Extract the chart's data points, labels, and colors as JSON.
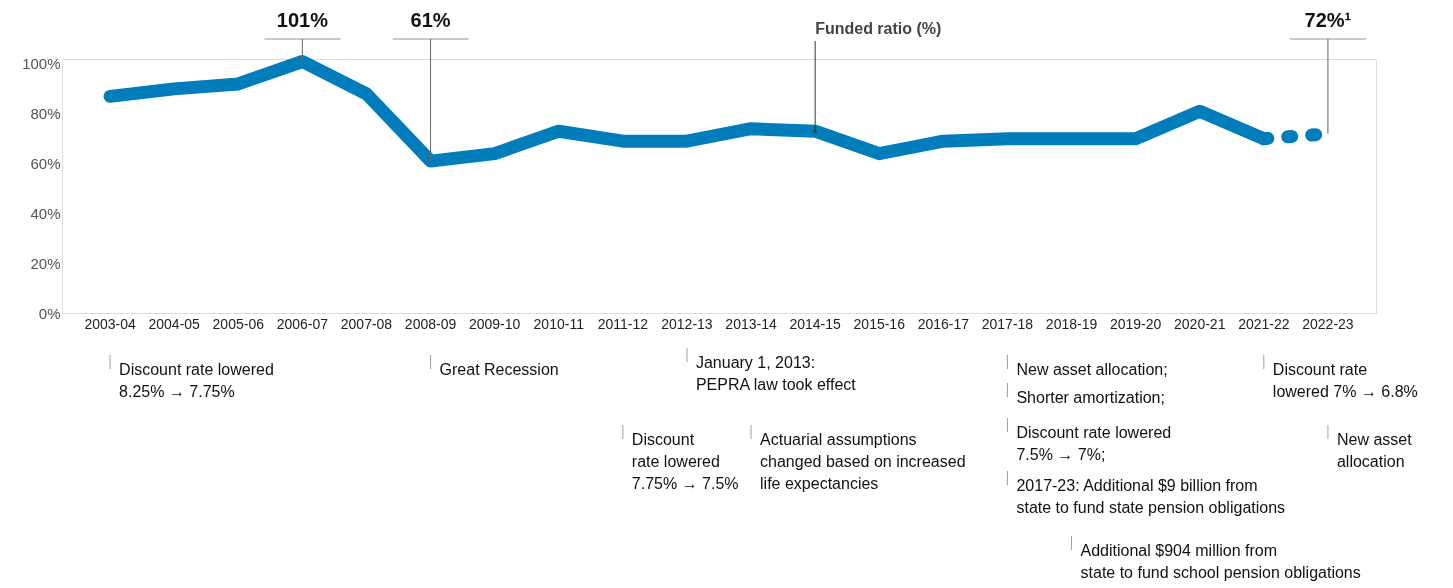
{
  "chart_data": {
    "type": "line",
    "categories": [
      "2003-04",
      "2004-05",
      "2005-06",
      "2006-07",
      "2007-08",
      "2008-09",
      "2009-10",
      "2010-11",
      "2011-12",
      "2012-13",
      "2013-14",
      "2014-15",
      "2015-16",
      "2016-17",
      "2017-18",
      "2018-19",
      "2019-20",
      "2020-21",
      "2021-22",
      "2022-23"
    ],
    "series": [
      {
        "color": "#007dba",
        "line_style": "solid",
        "values": [
          87,
          90,
          92,
          101,
          88,
          61,
          64,
          73,
          69,
          69,
          74,
          73,
          64,
          69,
          70,
          70,
          70,
          81,
          70,
          null
        ],
        "value_labels": [
          null,
          null,
          null,
          "101%",
          null,
          "61%",
          null,
          null,
          null,
          null,
          null,
          null,
          null,
          null,
          null,
          null,
          null,
          null,
          null,
          null
        ]
      },
      {
        "color": "#007dba",
        "line_style": "dotted",
        "values": [
          null,
          null,
          null,
          null,
          null,
          null,
          null,
          null,
          null,
          null,
          null,
          null,
          null,
          null,
          null,
          null,
          null,
          null,
          70,
          72
        ],
        "value_labels": [
          null,
          null,
          null,
          null,
          null,
          null,
          null,
          null,
          null,
          null,
          null,
          null,
          null,
          null,
          null,
          null,
          null,
          null,
          null,
          "72%¹"
        ]
      }
    ],
    "ylim": [
      0,
      102
    ],
    "yticks": [
      {
        "value": 0,
        "label": "0%"
      },
      {
        "value": 20,
        "label": "20%"
      },
      {
        "value": 40,
        "label": "40%"
      },
      {
        "value": 60,
        "label": "60%"
      },
      {
        "value": 80,
        "label": "80%"
      },
      {
        "value": 100,
        "label": "100%"
      }
    ],
    "grid": false,
    "marker": "none",
    "annotations": [
      "Discount rate lowered\n8.25% → 7.75%",
      "Great Recession",
      "Discount\nrate lowered\n7.75% → 7.5%",
      "January 1, 2013:\nPEPRA law took effect",
      "Actuarial assumptions\nchanged based on increased\nlife expectancies",
      "New asset allocation;",
      "Shorter amortization;",
      "Discount rate lowered\n7.5% → 7%;",
      "2017-23: Additional $9 billion from\nstate to fund state pension obligations",
      "Additional $904 million from\nstate to fund school pension obligations",
      "Discount rate\nlowered 7% → 6.8%",
      "New asset\nallocation",
      {
        "text": "Funded ratio (%)",
        "x": "2014-15",
        "y": 73
      }
    ]
  }
}
